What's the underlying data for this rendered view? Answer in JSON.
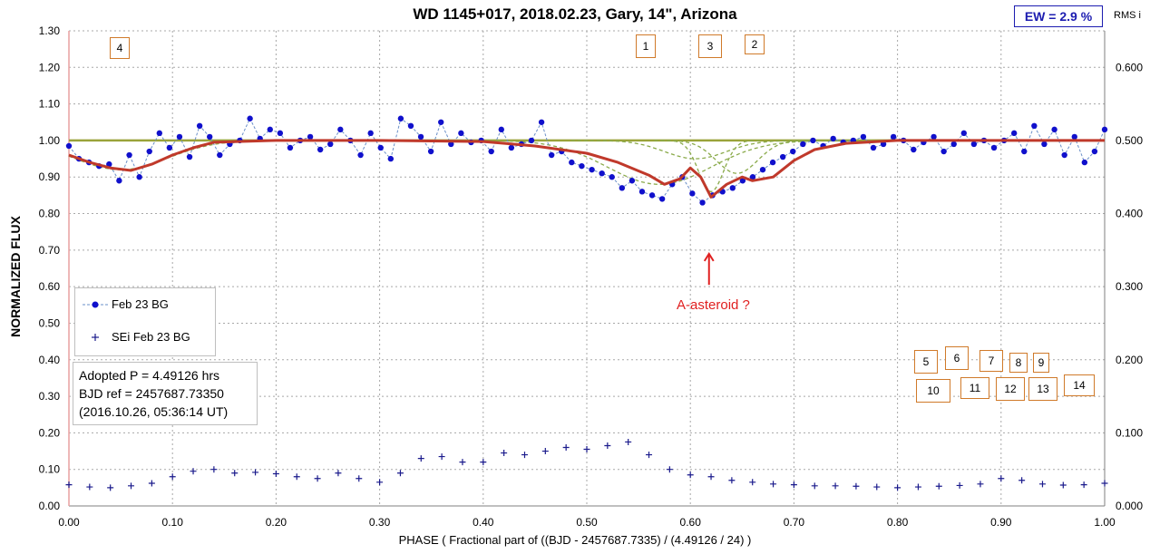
{
  "title": "WD 1145+017, 2018.02.23, Gary, 14\", Arizona",
  "ew_label": "EW =  2.9 %",
  "rms_label": "RMS i",
  "legend": {
    "series1": "Feb 23 BG",
    "series2": "SEi Feb 23 BG"
  },
  "info": {
    "line1": "Adopted P = 4.49126 hrs",
    "line2": "BJD ref = 2457687.73350",
    "line3": "(2016.10.26, 05:36:14 UT)"
  },
  "annotation": "A-asteroid ?",
  "markers": [
    "1",
    "2",
    "3",
    "4",
    "5",
    "6",
    "7",
    "8",
    "9",
    "10",
    "11",
    "12",
    "13",
    "14"
  ],
  "colors": {
    "points": "#1010cc",
    "fit": "#c0392b",
    "baseline": "#9aa33a",
    "dips": "#8aaa4a",
    "grid": "#a8a8a8",
    "annotation": "#e02020",
    "marker_border": "#d07a2a"
  },
  "chart_data": {
    "type": "scatter",
    "title": "WD 1145+017, 2018.02.23, Gary, 14\", Arizona",
    "xlabel": "PHASE  ( Fractional part of ((BJD - 2457687.7335)  / (4.49126  / 24)  )",
    "ylabel": "NORMALIZED  FLUX",
    "xlim": [
      0,
      1
    ],
    "ylim": [
      0,
      1.3
    ],
    "y2lim": [
      0,
      0.65
    ],
    "grid": true,
    "legend_position": "left",
    "x_ticks": [
      "0.00",
      "0.10",
      "0.20",
      "0.30",
      "0.40",
      "0.50",
      "0.60",
      "0.70",
      "0.80",
      "0.90",
      "1.00"
    ],
    "y_ticks": [
      "0.00",
      "0.10",
      "0.20",
      "0.30",
      "0.40",
      "0.50",
      "0.60",
      "0.70",
      "0.80",
      "0.90",
      "1.00",
      "1.10",
      "1.20",
      "1.30"
    ],
    "y2_ticks": [
      "0.000",
      "0.100",
      "0.200",
      "0.300",
      "0.400",
      "0.500",
      "0.600"
    ],
    "series": [
      {
        "name": "Feb 23 BG",
        "style": "dots-dashed",
        "x": [
          0.0,
          0.0097,
          0.0194,
          0.0291,
          0.0388,
          0.0485,
          0.0583,
          0.068,
          0.0777,
          0.0874,
          0.0971,
          0.1068,
          0.1165,
          0.1262,
          0.1359,
          0.1456,
          0.1553,
          0.165,
          0.1748,
          0.1845,
          0.1942,
          0.2039,
          0.2136,
          0.2233,
          0.233,
          0.2427,
          0.2524,
          0.2621,
          0.2718,
          0.2816,
          0.2913,
          0.301,
          0.3107,
          0.3204,
          0.3301,
          0.3398,
          0.3495,
          0.3592,
          0.3689,
          0.3786,
          0.3883,
          0.3981,
          0.4078,
          0.4175,
          0.4272,
          0.4369,
          0.4466,
          0.4563,
          0.466,
          0.4757,
          0.4854,
          0.4951,
          0.5049,
          0.5146,
          0.5243,
          0.534,
          0.5437,
          0.5534,
          0.5631,
          0.5728,
          0.5825,
          0.5922,
          0.6019,
          0.6117,
          0.6214,
          0.6311,
          0.6408,
          0.6505,
          0.6602,
          0.6699,
          0.6796,
          0.6893,
          0.699,
          0.7087,
          0.7184,
          0.7282,
          0.7379,
          0.7476,
          0.7573,
          0.767,
          0.7767,
          0.7864,
          0.7961,
          0.8058,
          0.8155,
          0.8252,
          0.835,
          0.8447,
          0.8544,
          0.8641,
          0.8738,
          0.8835,
          0.8932,
          0.9029,
          0.9126,
          0.9223,
          0.932,
          0.9417,
          0.9515,
          0.9612,
          0.9709,
          0.9806,
          0.9903,
          1.0
        ],
        "y": [
          0.985,
          0.95,
          0.94,
          0.93,
          0.935,
          0.89,
          0.96,
          0.9,
          0.97,
          1.02,
          0.98,
          1.01,
          0.955,
          1.04,
          1.01,
          0.96,
          0.99,
          1.0,
          1.06,
          1.005,
          1.03,
          1.02,
          0.98,
          1.0,
          1.01,
          0.975,
          0.99,
          1.03,
          1.0,
          0.96,
          1.02,
          0.98,
          0.95,
          1.06,
          1.04,
          1.01,
          0.97,
          1.05,
          0.99,
          1.02,
          0.995,
          1.0,
          0.97,
          1.03,
          0.98,
          0.99,
          1.0,
          1.05,
          0.96,
          0.97,
          0.94,
          0.93,
          0.92,
          0.91,
          0.9,
          0.87,
          0.89,
          0.86,
          0.85,
          0.84,
          0.88,
          0.9,
          0.855,
          0.83,
          0.85,
          0.86,
          0.87,
          0.89,
          0.9,
          0.92,
          0.94,
          0.955,
          0.97,
          0.99,
          1.0,
          0.985,
          1.005,
          0.995,
          1.0,
          1.01,
          0.98,
          0.99,
          1.01,
          1.0,
          0.975,
          0.995,
          1.01,
          0.97,
          0.99,
          1.02,
          0.99,
          1.0,
          0.98,
          1.0,
          1.02,
          0.97,
          1.04,
          0.99,
          1.03,
          0.96,
          1.01,
          0.94,
          0.97,
          1.03
        ]
      },
      {
        "name": "SEi Feb 23 BG",
        "style": "crosses",
        "x": [
          0.0,
          0.02,
          0.04,
          0.06,
          0.08,
          0.1,
          0.12,
          0.14,
          0.16,
          0.18,
          0.2,
          0.22,
          0.24,
          0.26,
          0.28,
          0.3,
          0.32,
          0.34,
          0.36,
          0.38,
          0.4,
          0.42,
          0.44,
          0.46,
          0.48,
          0.5,
          0.52,
          0.54,
          0.56,
          0.58,
          0.6,
          0.62,
          0.64,
          0.66,
          0.68,
          0.7,
          0.72,
          0.74,
          0.76,
          0.78,
          0.8,
          0.82,
          0.84,
          0.86,
          0.88,
          0.9,
          0.92,
          0.94,
          0.96,
          0.98,
          1.0
        ],
        "y": [
          0.058,
          0.052,
          0.05,
          0.055,
          0.062,
          0.08,
          0.095,
          0.1,
          0.09,
          0.092,
          0.088,
          0.08,
          0.075,
          0.09,
          0.075,
          0.065,
          0.09,
          0.13,
          0.135,
          0.12,
          0.12,
          0.145,
          0.14,
          0.15,
          0.16,
          0.155,
          0.165,
          0.175,
          0.14,
          0.1,
          0.085,
          0.08,
          0.07,
          0.065,
          0.06,
          0.058,
          0.055,
          0.055,
          0.054,
          0.052,
          0.05,
          0.052,
          0.054,
          0.056,
          0.06,
          0.075,
          0.07,
          0.06,
          0.057,
          0.058,
          0.062
        ]
      }
    ],
    "fit_curve": {
      "x": [
        0.0,
        0.02,
        0.04,
        0.06,
        0.08,
        0.1,
        0.12,
        0.14,
        0.2,
        0.3,
        0.4,
        0.45,
        0.5,
        0.53,
        0.56,
        0.575,
        0.59,
        0.6,
        0.61,
        0.62,
        0.635,
        0.65,
        0.66,
        0.68,
        0.7,
        0.72,
        0.75,
        0.8,
        1.0
      ],
      "y": [
        0.96,
        0.94,
        0.925,
        0.918,
        0.935,
        0.96,
        0.98,
        0.995,
        1.0,
        1.0,
        0.997,
        0.985,
        0.965,
        0.94,
        0.905,
        0.88,
        0.895,
        0.925,
        0.9,
        0.845,
        0.88,
        0.9,
        0.89,
        0.9,
        0.945,
        0.975,
        0.992,
        1.0,
        1.0
      ]
    },
    "annotations": [
      {
        "text": "A-asteroid ?",
        "x": 0.618,
        "y": 0.6
      }
    ]
  }
}
